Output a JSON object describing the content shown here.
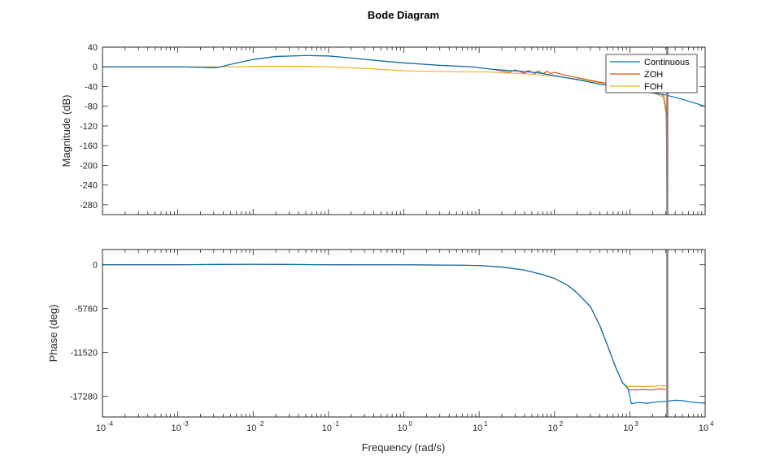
{
  "chart_data": {
    "type": "line",
    "title": "Bode Diagram",
    "xlabel": "Frequency (rad/s)",
    "x_scale": "log",
    "xlim": [
      0.0001,
      10000
    ],
    "x_ticks": [
      {
        "base": "10",
        "exp": "-4"
      },
      {
        "base": "10",
        "exp": "-3"
      },
      {
        "base": "10",
        "exp": "-2"
      },
      {
        "base": "10",
        "exp": "-1"
      },
      {
        "base": "10",
        "exp": "0"
      },
      {
        "base": "10",
        "exp": "1"
      },
      {
        "base": "10",
        "exp": "2"
      },
      {
        "base": "10",
        "exp": "3"
      },
      {
        "base": "10",
        "exp": "4"
      }
    ],
    "nyquist_line_x": 3141.6,
    "colors": {
      "Continuous": "#0072BD",
      "ZOH": "#D95319",
      "FOH": "#EDB120",
      "nyquist": "#808080"
    },
    "legend": {
      "placement": "top-right",
      "entries": [
        "Continuous",
        "ZOH",
        "FOH"
      ]
    },
    "panels": [
      {
        "id": "magnitude",
        "ylabel": "Magnitude (dB)",
        "ylim": [
          -300,
          40
        ],
        "yticks": [
          40,
          0,
          -40,
          -80,
          -120,
          -160,
          -200,
          -240,
          -280
        ],
        "ytick_labels": [
          "40",
          "0",
          "-40",
          "-80",
          "-120",
          "-160",
          "-200",
          "-240",
          "-280"
        ],
        "series": [
          {
            "name": "Continuous",
            "points": [
              [
                0.0001,
                0
              ],
              [
                0.0005,
                0
              ],
              [
                0.001,
                0
              ],
              [
                0.002,
                -1
              ],
              [
                0.003,
                -2
              ],
              [
                0.0035,
                -1
              ],
              [
                0.005,
                5
              ],
              [
                0.01,
                15
              ],
              [
                0.02,
                21
              ],
              [
                0.05,
                23
              ],
              [
                0.1,
                22
              ],
              [
                0.2,
                18
              ],
              [
                0.5,
                12
              ],
              [
                1,
                8
              ],
              [
                3,
                3
              ],
              [
                8,
                0
              ],
              [
                15,
                -5
              ],
              [
                30,
                -8
              ],
              [
                60,
                -12
              ],
              [
                100,
                -18
              ],
              [
                200,
                -26
              ],
              [
                500,
                -38
              ],
              [
                1000,
                -47
              ],
              [
                2000,
                -53
              ],
              [
                3000,
                -57
              ],
              [
                5000,
                -66
              ],
              [
                10000,
                -80
              ]
            ]
          },
          {
            "name": "ZOH",
            "points": [
              [
                0.0001,
                0
              ],
              [
                0.0005,
                0
              ],
              [
                0.001,
                0
              ],
              [
                0.002,
                -1
              ],
              [
                0.003,
                -2
              ],
              [
                0.0035,
                -1
              ],
              [
                0.005,
                5
              ],
              [
                0.01,
                15
              ],
              [
                0.02,
                21
              ],
              [
                0.05,
                23
              ],
              [
                0.1,
                22
              ],
              [
                0.2,
                18
              ],
              [
                0.5,
                12
              ],
              [
                1,
                8
              ],
              [
                3,
                3
              ],
              [
                8,
                0
              ],
              [
                15,
                -5
              ],
              [
                25,
                -11
              ],
              [
                30,
                -6
              ],
              [
                40,
                -13
              ],
              [
                45,
                -7
              ],
              [
                55,
                -14
              ],
              [
                60,
                -8
              ],
              [
                70,
                -14
              ],
              [
                80,
                -9
              ],
              [
                90,
                -14
              ],
              [
                100,
                -11
              ],
              [
                130,
                -16
              ],
              [
                200,
                -22
              ],
              [
                500,
                -34
              ],
              [
                1000,
                -44
              ],
              [
                2000,
                -50
              ],
              [
                2800,
                -58
              ],
              [
                3050,
                -90
              ],
              [
                3141,
                -300
              ]
            ]
          },
          {
            "name": "FOH",
            "points": [
              [
                0.0001,
                0
              ],
              [
                0.001,
                0
              ],
              [
                0.005,
                0
              ],
              [
                0.01,
                1
              ],
              [
                0.05,
                1
              ],
              [
                0.1,
                0
              ],
              [
                0.3,
                -3
              ],
              [
                1,
                -8
              ],
              [
                5,
                -10
              ],
              [
                12,
                -10
              ],
              [
                20,
                -12
              ],
              [
                40,
                -14
              ],
              [
                100,
                -19
              ],
              [
                200,
                -25
              ],
              [
                500,
                -35
              ],
              [
                1000,
                -45
              ],
              [
                2000,
                -52
              ],
              [
                2800,
                -62
              ],
              [
                3050,
                -100
              ],
              [
                3141,
                -300
              ]
            ]
          }
        ]
      },
      {
        "id": "phase",
        "ylabel": "Phase (deg)",
        "ylim": [
          -20000,
          2000
        ],
        "yticks": [
          0,
          -5760,
          -11520,
          -17280
        ],
        "ytick_labels": [
          "0",
          "-5760",
          "-11520",
          "-17280"
        ],
        "series": [
          {
            "name": "Continuous",
            "points": [
              [
                0.0001,
                0
              ],
              [
                0.001,
                0
              ],
              [
                0.003,
                30
              ],
              [
                0.01,
                60
              ],
              [
                0.03,
                30
              ],
              [
                0.1,
                0
              ],
              [
                1,
                -10
              ],
              [
                5,
                -50
              ],
              [
                10,
                -100
              ],
              [
                20,
                -300
              ],
              [
                40,
                -700
              ],
              [
                70,
                -1300
              ],
              [
                100,
                -1800
              ],
              [
                150,
                -2700
              ],
              [
                200,
                -3700
              ],
              [
                300,
                -5500
              ],
              [
                400,
                -8000
              ],
              [
                500,
                -10500
              ],
              [
                650,
                -13500
              ],
              [
                800,
                -15500
              ],
              [
                950,
                -16300
              ],
              [
                1050,
                -18250
              ],
              [
                1300,
                -18100
              ],
              [
                1700,
                -18200
              ],
              [
                2200,
                -18050
              ],
              [
                3000,
                -17950
              ],
              [
                4000,
                -17800
              ],
              [
                5000,
                -17850
              ],
              [
                6500,
                -18050
              ],
              [
                10000,
                -18200
              ]
            ]
          },
          {
            "name": "ZOH",
            "points": [
              [
                0.0001,
                0
              ],
              [
                0.001,
                0
              ],
              [
                0.003,
                30
              ],
              [
                0.01,
                60
              ],
              [
                0.03,
                30
              ],
              [
                0.1,
                0
              ],
              [
                1,
                -10
              ],
              [
                5,
                -50
              ],
              [
                10,
                -100
              ],
              [
                20,
                -300
              ],
              [
                40,
                -700
              ],
              [
                70,
                -1300
              ],
              [
                100,
                -1800
              ],
              [
                150,
                -2700
              ],
              [
                200,
                -3700
              ],
              [
                300,
                -5500
              ],
              [
                400,
                -8000
              ],
              [
                500,
                -10500
              ],
              [
                650,
                -13500
              ],
              [
                800,
                -15500
              ],
              [
                950,
                -16300
              ],
              [
                1000,
                -16450
              ],
              [
                1500,
                -16400
              ],
              [
                2000,
                -16450
              ],
              [
                2500,
                -16300
              ],
              [
                3000,
                -16400
              ]
            ]
          },
          {
            "name": "FOH",
            "points": [
              [
                0.0001,
                0
              ],
              [
                0.001,
                0
              ],
              [
                0.003,
                30
              ],
              [
                0.01,
                60
              ],
              [
                0.03,
                30
              ],
              [
                0.1,
                0
              ],
              [
                1,
                -10
              ],
              [
                5,
                -50
              ],
              [
                10,
                -100
              ],
              [
                20,
                -300
              ],
              [
                40,
                -700
              ],
              [
                70,
                -1300
              ],
              [
                100,
                -1800
              ],
              [
                150,
                -2700
              ],
              [
                200,
                -3700
              ],
              [
                300,
                -5500
              ],
              [
                400,
                -8000
              ],
              [
                500,
                -10500
              ],
              [
                650,
                -13500
              ],
              [
                800,
                -15500
              ],
              [
                950,
                -16100
              ],
              [
                1000,
                -15950
              ],
              [
                1500,
                -16000
              ],
              [
                2000,
                -15950
              ],
              [
                2500,
                -15900
              ],
              [
                3000,
                -15900
              ]
            ]
          }
        ]
      }
    ]
  }
}
